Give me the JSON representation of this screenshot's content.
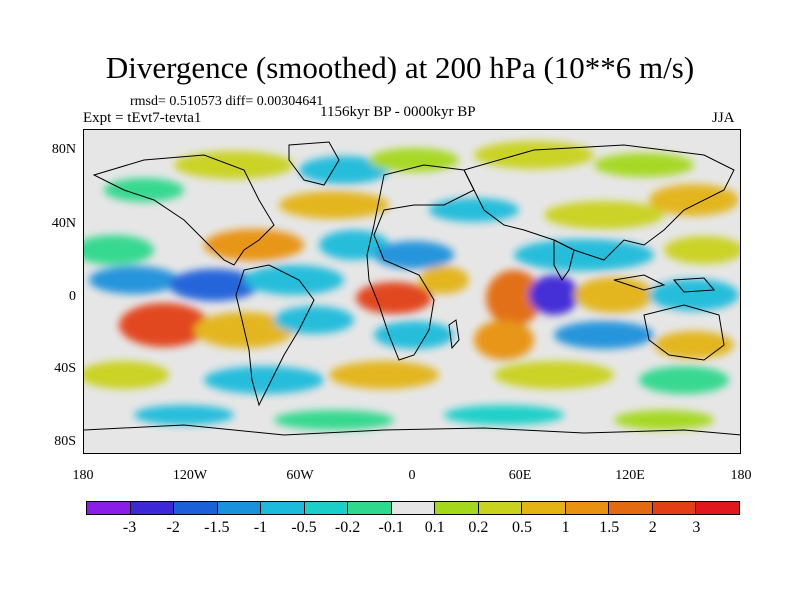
{
  "title": "Divergence (smoothed) at 200 hPa (10**6 m/s)",
  "stats": "rmsd= 0.510573  diff= 0.00304641",
  "expt": "Expt = tEvt7-tevta1",
  "period": "1156kyr BP - 0000kyr BP",
  "season": "JJA",
  "lat_labels": [
    "80N",
    "40N",
    "0",
    "40S",
    "80S"
  ],
  "lon_labels": [
    "180",
    "120W",
    "60W",
    "0",
    "60E",
    "120E",
    "180"
  ],
  "colorbar": {
    "colors": [
      "#8b1ee6",
      "#3c28d7",
      "#1b5fd9",
      "#1a91db",
      "#1dbbdb",
      "#19cfc8",
      "#2ed88c",
      "#e6e6e6",
      "#a4d81a",
      "#c9d21c",
      "#e3b413",
      "#e89210",
      "#e26a10",
      "#e23f14",
      "#e0181d"
    ],
    "labels": [
      "-3",
      "-2",
      "-1.5",
      "-1",
      "-0.5",
      "-0.2",
      "-0.1",
      "0.1",
      "0.2",
      "0.5",
      "1",
      "1.5",
      "2",
      "3"
    ]
  }
}
